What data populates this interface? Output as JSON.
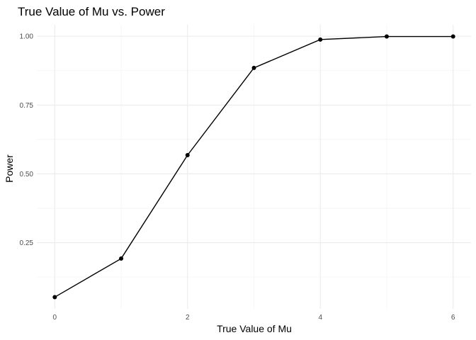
{
  "chart_data": {
    "type": "line",
    "title": "True Value of Mu vs. Power",
    "xlabel": "True Value of Mu",
    "ylabel": "Power",
    "x": [
      0,
      1,
      2,
      3,
      4,
      5,
      6
    ],
    "series": [
      {
        "values": [
          0.052,
          0.192,
          0.568,
          0.885,
          0.988,
          0.999,
          0.999
        ],
        "color": "#000000"
      }
    ],
    "xlim": [
      0,
      6
    ],
    "ylim": [
      0.052,
      0.999
    ],
    "x_major_ticks": [
      0,
      2,
      4,
      6
    ],
    "x_tick_labels": [
      "0",
      "2",
      "4",
      "6"
    ],
    "x_minor_ticks": [
      1,
      3,
      5
    ],
    "y_major_ticks": [
      0.25,
      0.5,
      0.75,
      1.0
    ],
    "y_tick_labels": [
      "0.25",
      "0.50",
      "0.75",
      "1.00"
    ],
    "y_minor_ticks": [
      0.125,
      0.375,
      0.625,
      0.875
    ],
    "grid": true,
    "markers": true,
    "legend": "none",
    "theme": "minimal"
  }
}
